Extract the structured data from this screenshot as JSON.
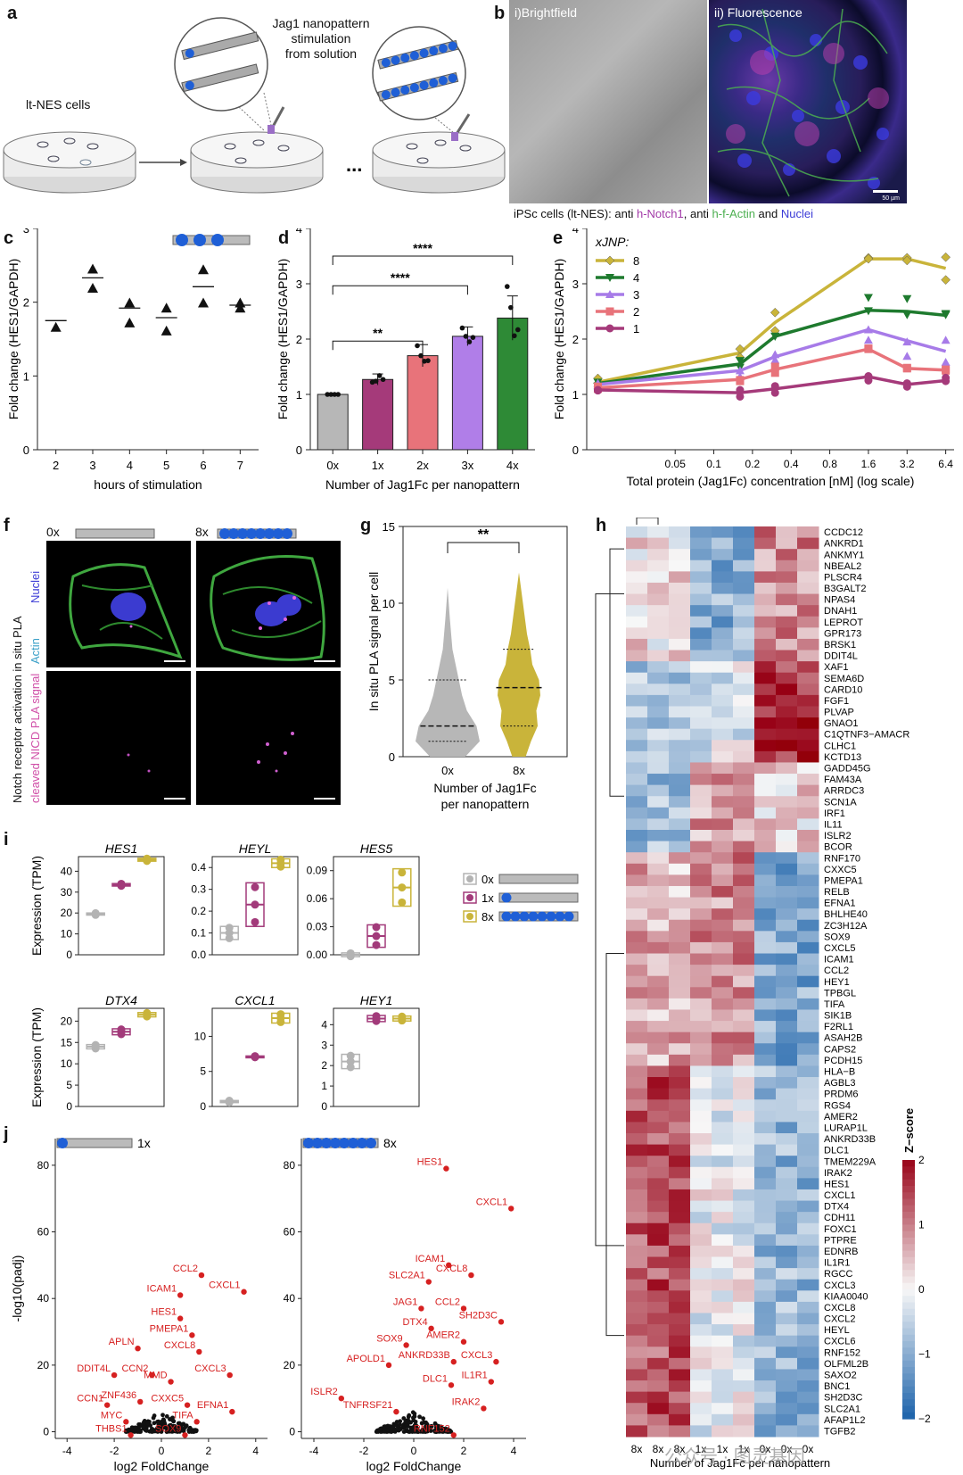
{
  "panels": {
    "a": {
      "label": "a",
      "cells_label": "lt-NES cells",
      "stim_label": [
        "Jag1 nanopattern",
        "stimulation",
        "from solution"
      ],
      "ellipsis": "..."
    },
    "b": {
      "label": "b",
      "brightfield": "i)Brightfield",
      "fluorescence": "ii) Fluorescence",
      "scalebar": "50 µm",
      "caption_prefix": "iPSc cells (lt-NES): anti ",
      "caption_notch": "h-Notch1",
      "caption_mid": ", anti ",
      "caption_actin": "h-f-Actin",
      "caption_and": " and ",
      "caption_nuclei": "Nuclei",
      "colors": {
        "notch": "#a23aa8",
        "actin": "#4caf50",
        "nuclei": "#3b3bd6"
      }
    },
    "f": {
      "label": "f",
      "cond0": "0x",
      "cond8": "8x",
      "ylabel_parts": [
        "Notch receptor activation in situ PLA",
        "Nuclei",
        "Actin",
        "cleaved NICD PLA signal"
      ]
    },
    "h": {
      "label": "h",
      "xlabel": "Number of Jag1Fc per nanopattern",
      "columns": [
        "8x",
        "8x",
        "8x",
        "1x",
        "1x",
        "1x",
        "0x",
        "0x",
        "0x"
      ],
      "genes": [
        "CCDC12",
        "ANKRD1",
        "ANKMY1",
        "NBEAL2",
        "PLSCR4",
        "B3GALT2",
        "NPAS4",
        "DNAH1",
        "LEPROT",
        "GPR173",
        "BRSK1",
        "DDIT4L",
        "XAF1",
        "SEMA6D",
        "CARD10",
        "FGF1",
        "PLVAP",
        "GNAO1",
        "C1QTNF3−AMACR",
        "CLHC1",
        "KCTD13",
        "GADD45G",
        "FAM43A",
        "ARRDC3",
        "SCN1A",
        "IRF1",
        "IL11",
        "ISLR2",
        "BCOR",
        "RNF170",
        "CXXC5",
        "PMEPA1",
        "RELB",
        "EFNA1",
        "BHLHE40",
        "ZC3H12A",
        "SOX9",
        "CXCL5",
        "ICAM1",
        "CCL2",
        "HEY1",
        "TPBGL",
        "TIFA",
        "SIK1B",
        "F2RL1",
        "ASAH2B",
        "CAPS2",
        "PCDH15",
        "HLA−B",
        "AGBL3",
        "PRDM6",
        "RGS4",
        "AMER2",
        "LURAP1L",
        "ANKRD33B",
        "DLC1",
        "TMEM229A",
        "IRAK2",
        "HES1",
        "CXCL1",
        "DTX4",
        "CDH11",
        "FOXC1",
        "PTPRE",
        "EDNRB",
        "IL1R1",
        "RGCC",
        "CXCL3",
        "KIAA0040",
        "CXCL8",
        "CXCL2",
        "HEYL",
        "CXCL6",
        "RNF152",
        "OLFML2B",
        "SAXO2",
        "BNC1",
        "SH2D3C",
        "SLC2A1",
        "AFAP1L2",
        "TGFB2"
      ],
      "legend_title": "Z−score",
      "legend_ticks": [
        "2",
        "1",
        "0",
        "−1",
        "−2"
      ]
    },
    "i": {
      "label": "i",
      "ylabel": "Expression (TPM)",
      "legend": [
        {
          "label": "0x",
          "color": "#b3b3b3"
        },
        {
          "label": "1x",
          "color": "#a23a7a"
        },
        {
          "label": "8x",
          "color": "#c9b43a"
        }
      ]
    },
    "watermark": "公众号 · 图灵基因"
  },
  "chart_data": [
    {
      "id": "c",
      "type": "scatter",
      "xlabel": "hours of stimulation",
      "ylabel": "Fold change (HES1/GAPDH)",
      "x": [
        2,
        3,
        4,
        5,
        6,
        7
      ],
      "xlim": [
        1.5,
        7.5
      ],
      "ylim": [
        0,
        3
      ],
      "yticks": [
        "0",
        "1",
        "2",
        "3"
      ],
      "points": [
        [
          2,
          1.66
        ],
        [
          3,
          2.45
        ],
        [
          3,
          2.19
        ],
        [
          4,
          1.99
        ],
        [
          4,
          1.72
        ],
        [
          5,
          1.92
        ],
        [
          5,
          1.61
        ],
        [
          6,
          2.44
        ],
        [
          6,
          1.99
        ],
        [
          7,
          1.99
        ],
        [
          7,
          1.92
        ]
      ],
      "means": [
        1.75,
        2.33,
        1.92,
        1.79,
        2.21,
        1.96
      ]
    },
    {
      "id": "d",
      "type": "bar",
      "xlabel": "Number of Jag1Fc per nanopattern",
      "ylabel": "Fold change (HES1/GAPDH)",
      "categories": [
        "0x",
        "1x",
        "2x",
        "3x",
        "4x"
      ],
      "values": [
        1.0,
        1.27,
        1.7,
        2.05,
        2.38
      ],
      "errors": [
        0.02,
        0.1,
        0.2,
        0.17,
        0.4
      ],
      "colors": [
        "#b7b7b7",
        "#a53a7a",
        "#e8737a",
        "#b07ee8",
        "#2e8a36"
      ],
      "points": [
        [
          1.0,
          1.0,
          1.0,
          1.0
        ],
        [
          1.22,
          1.24,
          1.34,
          1.27
        ],
        [
          1.88,
          1.7,
          1.6,
          1.61
        ],
        [
          2.2,
          2.05,
          1.95,
          2.03
        ],
        [
          2.95,
          2.57,
          2.06,
          2.17
        ]
      ],
      "ylim": [
        0,
        4
      ],
      "yticks": [
        "0",
        "1",
        "2",
        "3",
        "4"
      ],
      "significance": [
        {
          "from": 0,
          "to": 2,
          "label": "**"
        },
        {
          "from": 0,
          "to": 3,
          "label": "****"
        },
        {
          "from": 0,
          "to": 4,
          "label": "****"
        }
      ]
    },
    {
      "id": "e",
      "type": "line",
      "xlabel": "Total protein (Jag1Fc) concentration [nM] (log scale)",
      "ylabel": "Fold change (HES1/GAPDH)",
      "x": [
        0.0125,
        0.16,
        0.3,
        1.6,
        3.2,
        6.4
      ],
      "xticks": [
        "0.05",
        "0.1",
        "0.2",
        "0.4",
        "0.8",
        "1.6",
        "3.2",
        "6.4"
      ],
      "xtick_values": [
        0.05,
        0.1,
        0.2,
        0.4,
        0.8,
        1.6,
        3.2,
        6.4
      ],
      "ylim": [
        0,
        4
      ],
      "yticks": [
        "0",
        "1",
        "2",
        "3",
        "4"
      ],
      "legend_title": "xJNP:",
      "series": [
        {
          "name": "8",
          "color": "#c9b43a",
          "marker": "diamond",
          "values": [
            1.22,
            1.75,
            2.3,
            3.45,
            3.45,
            3.28
          ],
          "points": [
            [
              1.29,
              1.2
            ],
            [
              1.82,
              1.67
            ],
            [
              2.15,
              2.48
            ],
            [
              3.47,
              3.45
            ],
            [
              3.47,
              3.42
            ],
            [
              3.48,
              3.07
            ]
          ]
        },
        {
          "name": "4",
          "color": "#1e7a2e",
          "marker": "triangle-down",
          "values": [
            1.2,
            1.55,
            2.05,
            2.52,
            2.5,
            2.43
          ],
          "points": [
            [
              1.22,
              1.15
            ],
            [
              1.61,
              1.49
            ],
            [
              2.05,
              2.05
            ],
            [
              2.51,
              2.75
            ],
            [
              2.44,
              2.73
            ],
            [
              2.44,
              2.46
            ]
          ]
        },
        {
          "name": "3",
          "color": "#a77be8",
          "marker": "triangle-up",
          "values": [
            1.18,
            1.43,
            1.68,
            2.17,
            1.97,
            1.78
          ],
          "points": [
            [
              1.2,
              1.16
            ],
            [
              1.43,
              1.32
            ],
            [
              1.62,
              1.72
            ],
            [
              2.17,
              1.98
            ],
            [
              1.95,
              1.69
            ],
            [
              1.98,
              1.58
            ]
          ]
        },
        {
          "name": "2",
          "color": "#e8737a",
          "marker": "square",
          "values": [
            1.12,
            1.27,
            1.45,
            1.82,
            1.47,
            1.44
          ],
          "points": [
            [
              1.1,
              1.14
            ],
            [
              1.26,
              1.24
            ],
            [
              1.5,
              1.39
            ],
            [
              1.83,
              1.82
            ],
            [
              1.47,
              1.48
            ],
            [
              1.45,
              1.43
            ]
          ]
        },
        {
          "name": "1",
          "color": "#a53a7a",
          "marker": "circle",
          "values": [
            1.08,
            1.03,
            1.1,
            1.32,
            1.18,
            1.25
          ],
          "points": [
            [
              1.08,
              1.07
            ],
            [
              0.96,
              1.08
            ],
            [
              1.03,
              1.15
            ],
            [
              1.33,
              1.25
            ],
            [
              1.14,
              1.2
            ],
            [
              1.24,
              1.3
            ]
          ]
        }
      ]
    },
    {
      "id": "g",
      "type": "violin",
      "xlabel": "Number of Jag1Fc per nanopattern",
      "ylabel": "In situ PLA signal per cell",
      "categories": [
        "0x",
        "8x"
      ],
      "ylim": [
        0,
        15
      ],
      "yticks": [
        "0",
        "5",
        "10",
        "15"
      ],
      "colors": [
        "#b7b7b7",
        "#c9b43a"
      ],
      "medians": [
        2,
        4.5
      ],
      "q1": [
        1,
        2
      ],
      "q3": [
        5,
        7
      ],
      "max": [
        11,
        12
      ],
      "significance": "**"
    },
    {
      "id": "i",
      "type": "boxplot",
      "panels": [
        {
          "gene": "HES1",
          "yticks": [
            "0",
            "10",
            "20",
            "30",
            "40"
          ],
          "ylim": [
            0,
            47
          ],
          "medians": [
            19.5,
            33.5,
            45.5
          ],
          "spread": [
            0.5,
            0.6,
            0.7
          ]
        },
        {
          "gene": "HEYL",
          "yticks": [
            "0.0",
            "0.1",
            "0.2",
            "0.3",
            "0.4"
          ],
          "ylim": [
            0,
            0.45
          ],
          "medians": [
            0.1,
            0.23,
            0.42
          ],
          "spread": [
            0.03,
            0.1,
            0.02
          ]
        },
        {
          "gene": "HES5",
          "yticks": [
            "0.00",
            "0.03",
            "0.06",
            "0.09"
          ],
          "ylim": [
            0,
            0.105
          ],
          "medians": [
            0.0,
            0.02,
            0.072
          ],
          "spread": [
            0.002,
            0.012,
            0.02
          ]
        },
        {
          "gene": "DTX4",
          "yticks": [
            "0",
            "5",
            "10",
            "15",
            "20"
          ],
          "ylim": [
            0,
            23
          ],
          "medians": [
            14,
            17.5,
            21.5
          ],
          "spread": [
            0.5,
            0.7,
            0.5
          ]
        },
        {
          "gene": "CXCL1",
          "yticks": [
            "0",
            "5",
            "10"
          ],
          "ylim": [
            0,
            14
          ],
          "medians": [
            0.7,
            7.1,
            12.6
          ],
          "spread": [
            0.15,
            0.1,
            0.7
          ]
        },
        {
          "gene": "HEY1",
          "yticks": [
            "0",
            "1",
            "2",
            "3",
            "4"
          ],
          "ylim": [
            0,
            4.8
          ],
          "medians": [
            2.2,
            4.3,
            4.3
          ],
          "spread": [
            0.35,
            0.15,
            0.12
          ]
        }
      ]
    },
    {
      "id": "j",
      "type": "volcano",
      "xlabel": "log2 FoldChange",
      "ylabel": "-log10(padj)",
      "xlim": [
        -4.5,
        4.5
      ],
      "ylim": [
        -2,
        88
      ],
      "xticks": [
        "-4",
        "-2",
        "0",
        "2",
        "4"
      ],
      "yticks": [
        "0",
        "20",
        "40",
        "60",
        "80"
      ],
      "panels": [
        {
          "condition": "1x",
          "labels": [
            {
              "name": "CCL2",
              "x": 1.7,
              "y": 47
            },
            {
              "name": "ICAM1",
              "x": 0.8,
              "y": 41
            },
            {
              "name": "CXCL1",
              "x": 3.5,
              "y": 42
            },
            {
              "name": "HES1",
              "x": 0.8,
              "y": 34
            },
            {
              "name": "PMEPA1",
              "x": 1.3,
              "y": 29
            },
            {
              "name": "APLN",
              "x": -1.0,
              "y": 25
            },
            {
              "name": "CXCL8",
              "x": 1.6,
              "y": 24
            },
            {
              "name": "DDIT4L",
              "x": -2.0,
              "y": 17
            },
            {
              "name": "CCN2",
              "x": -0.4,
              "y": 17
            },
            {
              "name": "MMD",
              "x": 0.4,
              "y": 15
            },
            {
              "name": "CXCL3",
              "x": 2.9,
              "y": 17
            },
            {
              "name": "CCN1",
              "x": -2.3,
              "y": 8
            },
            {
              "name": "ZNF436",
              "x": -0.9,
              "y": 9
            },
            {
              "name": "CXXC5",
              "x": 1.1,
              "y": 8
            },
            {
              "name": "EFNA1",
              "x": 3.0,
              "y": 6
            },
            {
              "name": "MYC",
              "x": -1.5,
              "y": 3
            },
            {
              "name": "TIFA",
              "x": 1.5,
              "y": 3
            },
            {
              "name": "THBS1",
              "x": -1.3,
              "y": -1
            },
            {
              "name": "SOX9",
              "x": 1.0,
              "y": -1
            }
          ]
        },
        {
          "condition": "8x",
          "labels": [
            {
              "name": "HES1",
              "x": 1.3,
              "y": 79
            },
            {
              "name": "CXCL1",
              "x": 3.9,
              "y": 67
            },
            {
              "name": "ICAM1",
              "x": 1.4,
              "y": 50
            },
            {
              "name": "CXCL8",
              "x": 2.3,
              "y": 47
            },
            {
              "name": "SLC2A1",
              "x": 0.6,
              "y": 45
            },
            {
              "name": "JAG1",
              "x": 0.3,
              "y": 37
            },
            {
              "name": "CCL2",
              "x": 2.0,
              "y": 37
            },
            {
              "name": "SH2D3C",
              "x": 3.5,
              "y": 33
            },
            {
              "name": "DTX4",
              "x": 0.7,
              "y": 31
            },
            {
              "name": "SOX9",
              "x": -0.3,
              "y": 26
            },
            {
              "name": "AMER2",
              "x": 2.0,
              "y": 27
            },
            {
              "name": "APOLD1",
              "x": -1.0,
              "y": 20
            },
            {
              "name": "ANKRD33B",
              "x": 1.6,
              "y": 21
            },
            {
              "name": "CXCL3",
              "x": 3.3,
              "y": 21
            },
            {
              "name": "DLC1",
              "x": 1.5,
              "y": 14
            },
            {
              "name": "IL1R1",
              "x": 3.1,
              "y": 15
            },
            {
              "name": "ISLR2",
              "x": -2.9,
              "y": 10
            },
            {
              "name": "TNFRSF21",
              "x": -0.7,
              "y": 6
            },
            {
              "name": "IRAK2",
              "x": 2.8,
              "y": 7
            },
            {
              "name": "RNF152",
              "x": 1.6,
              "y": -1
            }
          ]
        }
      ]
    }
  ]
}
